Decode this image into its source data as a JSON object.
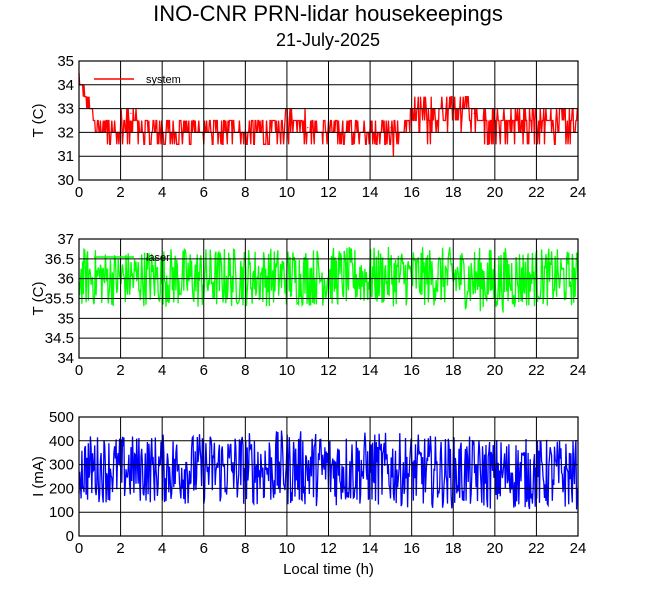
{
  "title": "INO-CNR PRN-lidar housekeepings",
  "subtitle": "21-July-2025",
  "chart_data": [
    {
      "type": "line",
      "title": "",
      "xlabel": "",
      "ylabel": "T (C)",
      "xlim": [
        0,
        24
      ],
      "ylim": [
        30,
        35
      ],
      "xticks": [
        "0",
        "2",
        "4",
        "6",
        "8",
        "10",
        "12",
        "14",
        "16",
        "18",
        "20",
        "22",
        "24"
      ],
      "yticks": [
        "30",
        "31",
        "32",
        "33",
        "34",
        "35"
      ],
      "grid": true,
      "legend": "top-left",
      "series": [
        {
          "name": "system",
          "color": "#ff0000",
          "x": [
            0,
            1,
            2,
            2.5,
            3,
            4,
            5,
            6,
            7,
            8,
            9,
            9.5,
            10,
            11,
            12,
            13,
            14,
            15,
            15.5,
            16,
            17,
            18,
            19,
            20,
            21,
            22,
            23,
            24
          ],
          "y": [
            34.2,
            32.1,
            32.1,
            32.8,
            32.1,
            32.0,
            32.1,
            32.1,
            32.1,
            32.1,
            32.0,
            32.1,
            32.5,
            32.2,
            32.1,
            32.1,
            32.1,
            32.2,
            32.0,
            32.5,
            32.7,
            33.0,
            32.8,
            32.6,
            32.7,
            32.6,
            32.6,
            32.5
          ],
          "min": [
            33.8,
            31.5,
            31.5,
            31.5,
            31.5,
            31.5,
            31.5,
            31.5,
            31.5,
            31.5,
            31.0,
            31.5,
            31.5,
            31.5,
            31.0,
            31.5,
            31.5,
            31.0,
            31.0,
            31.5,
            31.5,
            32.0,
            31.5,
            31.5,
            31.5,
            31.5,
            31.5,
            31.5
          ],
          "max": [
            34.5,
            32.5,
            33.0,
            33.5,
            33.0,
            32.5,
            32.5,
            32.5,
            32.5,
            32.5,
            32.5,
            33.0,
            33.0,
            33.0,
            32.5,
            32.5,
            32.5,
            32.5,
            32.5,
            33.5,
            33.5,
            33.5,
            33.5,
            33.0,
            33.5,
            33.0,
            33.5,
            33.0
          ]
        }
      ]
    },
    {
      "type": "line",
      "title": "",
      "xlabel": "",
      "ylabel": "T (C)",
      "xlim": [
        0,
        24
      ],
      "ylim": [
        34,
        37
      ],
      "xticks": [
        "0",
        "2",
        "4",
        "6",
        "8",
        "10",
        "12",
        "14",
        "16",
        "18",
        "20",
        "22",
        "24"
      ],
      "yticks": [
        "34",
        "34.5",
        "35",
        "35.5",
        "36",
        "36.5",
        "37"
      ],
      "grid": true,
      "legend": "top-left",
      "series": [
        {
          "name": "laser",
          "color": "#00ff00",
          "x": [
            0,
            2,
            4,
            6,
            8,
            10,
            12,
            14,
            16,
            18,
            20,
            22,
            24
          ],
          "y": [
            36.0,
            36.0,
            36.0,
            36.0,
            36.0,
            36.0,
            36.0,
            36.0,
            36.0,
            36.0,
            36.0,
            36.0,
            36.0
          ],
          "min": [
            35.3,
            35.3,
            35.3,
            35.2,
            35.3,
            35.3,
            35.3,
            35.3,
            35.3,
            35.3,
            35.1,
            35.3,
            35.3
          ],
          "max": [
            36.8,
            36.7,
            36.8,
            36.8,
            36.8,
            36.8,
            36.8,
            36.8,
            36.8,
            36.8,
            36.8,
            36.8,
            36.7
          ]
        }
      ]
    },
    {
      "type": "line",
      "title": "",
      "xlabel": "Local time (h)",
      "ylabel": "I (mA)",
      "xlim": [
        0,
        24
      ],
      "ylim": [
        0,
        500
      ],
      "xticks": [
        "0",
        "2",
        "4",
        "6",
        "8",
        "10",
        "12",
        "14",
        "16",
        "18",
        "20",
        "22",
        "24"
      ],
      "yticks": [
        "0",
        "100",
        "200",
        "300",
        "400",
        "500"
      ],
      "grid": true,
      "legend": "top-left",
      "series": [
        {
          "name": "",
          "color": "#0000ff",
          "x": [
            0,
            2,
            4,
            6,
            8,
            10,
            12,
            14,
            16,
            18,
            20,
            22,
            24
          ],
          "y": [
            280,
            280,
            280,
            280,
            280,
            280,
            280,
            280,
            280,
            270,
            265,
            265,
            265
          ],
          "min": [
            140,
            140,
            135,
            130,
            130,
            125,
            125,
            125,
            120,
            115,
            110,
            110,
            110
          ],
          "max": [
            430,
            425,
            430,
            435,
            440,
            445,
            440,
            440,
            430,
            420,
            415,
            410,
            410
          ]
        }
      ]
    }
  ]
}
